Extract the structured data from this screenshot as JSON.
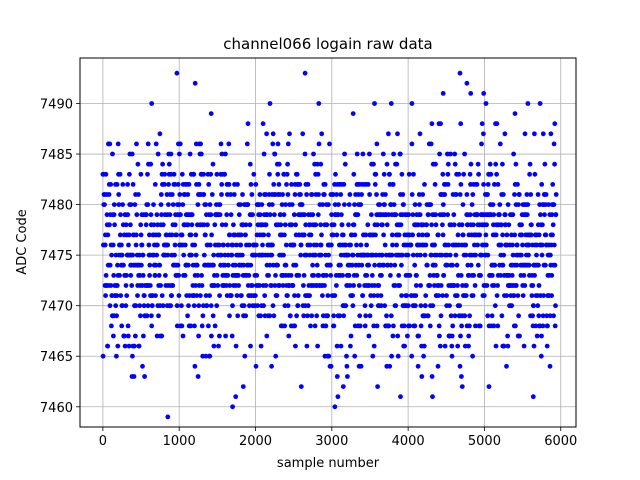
{
  "chart_data": {
    "type": "scatter",
    "title": "channel066 logain raw data",
    "xlabel": "sample number",
    "ylabel": "ADC Code",
    "xlim": [
      -300,
      6200
    ],
    "ylim": [
      7458,
      7494.5
    ],
    "xticks": [
      0,
      1000,
      2000,
      3000,
      4000,
      5000,
      6000
    ],
    "yticks": [
      7460,
      7465,
      7470,
      7475,
      7480,
      7485,
      7490
    ],
    "grid": true,
    "marker_color": "#0000ff",
    "x_range": [
      0,
      5940
    ],
    "series": [
      {
        "distribution": {
          "values": [
            7463,
            7464,
            7465,
            7466,
            7467,
            7468,
            7469,
            7470,
            7471,
            7472,
            7473,
            7474,
            7475,
            7476,
            7477,
            7478,
            7479,
            7480,
            7481,
            7482,
            7483,
            7484,
            7485,
            7486,
            7487,
            7488
          ],
          "weights": [
            1,
            2,
            3,
            4,
            5,
            7,
            9,
            11,
            13,
            15,
            16,
            17,
            18,
            18,
            17,
            16,
            15,
            13,
            11,
            9,
            7,
            5,
            4,
            3,
            2,
            1
          ]
        },
        "outliers": [
          {
            "x": 850,
            "y": 7459
          },
          {
            "x": 970,
            "y": 7493
          },
          {
            "x": 1210,
            "y": 7492
          },
          {
            "x": 640,
            "y": 7490
          },
          {
            "x": 1420,
            "y": 7489
          },
          {
            "x": 1700,
            "y": 7460
          },
          {
            "x": 1740,
            "y": 7461
          },
          {
            "x": 1840,
            "y": 7462
          },
          {
            "x": 2190,
            "y": 7490
          },
          {
            "x": 2650,
            "y": 7493
          },
          {
            "x": 2830,
            "y": 7490
          },
          {
            "x": 2600,
            "y": 7462
          },
          {
            "x": 3040,
            "y": 7460
          },
          {
            "x": 3080,
            "y": 7461
          },
          {
            "x": 3150,
            "y": 7462
          },
          {
            "x": 3280,
            "y": 7489
          },
          {
            "x": 3560,
            "y": 7490
          },
          {
            "x": 3780,
            "y": 7490
          },
          {
            "x": 4050,
            "y": 7490
          },
          {
            "x": 3900,
            "y": 7461
          },
          {
            "x": 4320,
            "y": 7461
          },
          {
            "x": 4460,
            "y": 7491
          },
          {
            "x": 4680,
            "y": 7493
          },
          {
            "x": 4770,
            "y": 7492
          },
          {
            "x": 4820,
            "y": 7491
          },
          {
            "x": 4990,
            "y": 7491
          },
          {
            "x": 5020,
            "y": 7490
          },
          {
            "x": 4710,
            "y": 7462
          },
          {
            "x": 5400,
            "y": 7489
          },
          {
            "x": 5570,
            "y": 7490
          },
          {
            "x": 5730,
            "y": 7490
          },
          {
            "x": 5640,
            "y": 7461
          },
          {
            "x": 3600,
            "y": 7462
          },
          {
            "x": 5060,
            "y": 7462
          }
        ]
      }
    ]
  }
}
